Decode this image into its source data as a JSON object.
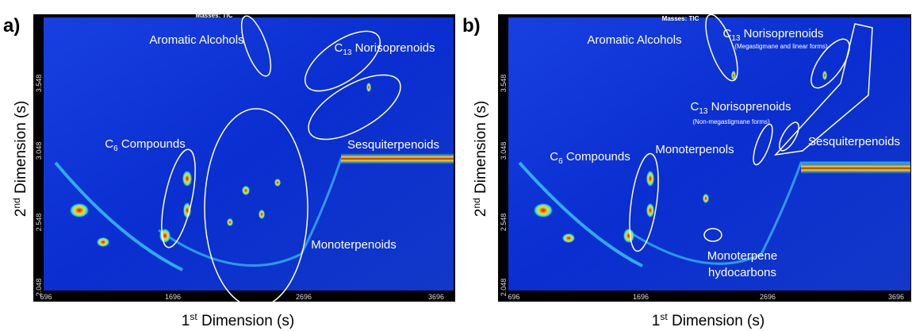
{
  "panels": [
    {
      "label": "a)",
      "masses": "Masses: TIC",
      "x_axis": {
        "title": {
          "pre": "1",
          "sup": "st",
          "post": " Dimension (s)"
        },
        "ticks": [
          "696",
          "1696",
          "2696",
          "3696"
        ]
      },
      "y_axis": {
        "title": {
          "pre": "2",
          "sup": "nd",
          "post": " Dimension (s)"
        },
        "ticks": [
          "2.048",
          "2.548",
          "3.048",
          "3.548"
        ]
      },
      "annotations": {
        "aromatic_alcohols": "Aromatic Alcohols",
        "norisoprenoids": {
          "pre": "C",
          "sub": "13",
          "post": " Norisoprenoids"
        },
        "c6": {
          "pre": "C",
          "sub": "6",
          "post": " Compounds"
        },
        "sesquiterpenoids": "Sesquiterpenoids",
        "monoterpenoids": "Monoterpenoids"
      }
    },
    {
      "label": "b)",
      "masses": "Masses: TIC",
      "x_axis": {
        "title": {
          "pre": "1",
          "sup": "st",
          "post": " Dimension (s)"
        },
        "ticks": [
          "696",
          "1696",
          "2696",
          "3696"
        ]
      },
      "y_axis": {
        "title": {
          "pre": "2",
          "sup": "nd",
          "post": " Dimension (s)"
        },
        "ticks": [
          "2.048",
          "2.548",
          "3.048",
          "3.548"
        ]
      },
      "annotations": {
        "aromatic_alcohols": "Aromatic Alcohols",
        "norisoprenoids_1": {
          "pre": "C",
          "sub": "13",
          "post": " Norisoprenoids",
          "note": "(Megastigmane and linear forms)"
        },
        "norisoprenoids_2": {
          "pre": "C",
          "sub": "13",
          "post": " Norisoprenoids",
          "note": "(Non-megastigmane forms)"
        },
        "monoterpenols": "Monoterpenols",
        "c6": {
          "pre": "C",
          "sub": "6",
          "post": " Compounds"
        },
        "sesquiterpenoids": "Sesquiterpenoids",
        "monoterpene_hydrocarbons": [
          "Monoterpene",
          "hydocarbons"
        ]
      }
    }
  ]
}
